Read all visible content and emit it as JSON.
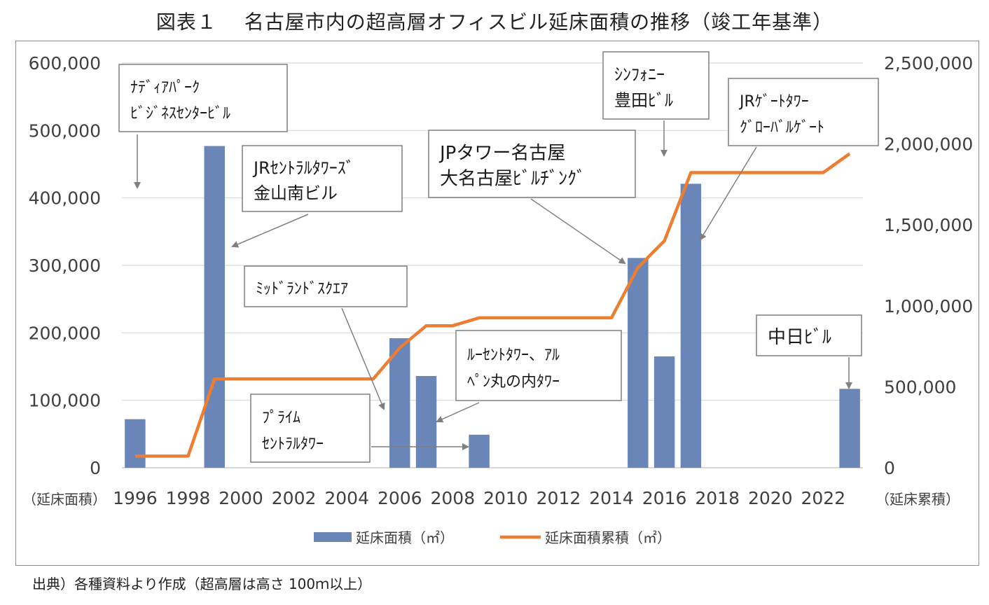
{
  "title": "図表１　 名古屋市内の超高層オフィスビル延床面積の推移（竣工年基準）",
  "source": "出典）各種資料より作成（超高層は高さ 100ｍ以上）",
  "colors": {
    "bar": "#6a86b8",
    "line": "#ed7d31",
    "grid": "#d9d9d9",
    "callout_border": "#7f7f7f",
    "arrow": "#7f7f7f"
  },
  "chart_data": {
    "type": "bar",
    "title": "図表１　 名古屋市内の超高層オフィスビル延床面積の推移（竣工年基準）",
    "x": [
      1996,
      1997,
      1998,
      1999,
      2000,
      2001,
      2002,
      2003,
      2004,
      2005,
      2006,
      2007,
      2008,
      2009,
      2010,
      2011,
      2012,
      2013,
      2014,
      2015,
      2016,
      2017,
      2018,
      2019,
      2020,
      2021,
      2022,
      2023
    ],
    "x_tick_labels": [
      "1996",
      "1998",
      "2000",
      "2002",
      "2004",
      "2006",
      "2008",
      "2010",
      "2012",
      "2014",
      "2016",
      "2018",
      "2020",
      "2022"
    ],
    "y_left_label": "（延床面積）",
    "y_right_label": "（延床累積）",
    "y_left_range": [
      0,
      600000
    ],
    "y_right_range": [
      0,
      2500000
    ],
    "y_left_ticks": [
      "0",
      "100,000",
      "200,000",
      "300,000",
      "400,000",
      "500,000",
      "600,000"
    ],
    "y_right_ticks": [
      "0",
      "500,000",
      "1,000,000",
      "1,500,000",
      "2,000,000",
      "2,500,000"
    ],
    "grid": true,
    "legend_position": "bottom",
    "series": [
      {
        "name": "延床面積（㎡）",
        "type": "bar",
        "axis": "left",
        "values": [
          72000,
          0,
          0,
          477000,
          0,
          0,
          0,
          0,
          0,
          0,
          192000,
          136000,
          0,
          49000,
          0,
          0,
          0,
          0,
          0,
          311000,
          165000,
          421000,
          0,
          0,
          0,
          0,
          0,
          117000
        ]
      },
      {
        "name": "延床面積累積（㎡）",
        "type": "line",
        "axis": "right",
        "values": [
          72000,
          72000,
          72000,
          549000,
          549000,
          549000,
          549000,
          549000,
          549000,
          549000,
          741000,
          877000,
          877000,
          926000,
          926000,
          926000,
          926000,
          926000,
          926000,
          1237000,
          1402000,
          1823000,
          1823000,
          1823000,
          1823000,
          1823000,
          1823000,
          1940000
        ]
      }
    ],
    "annotations": [
      {
        "year": 1996,
        "lines": [
          "ﾅﾃﾞｨｱﾊﾟｰｸ",
          "ﾋﾞｼﾞﾈｽｾﾝﾀｰﾋﾞﾙ"
        ]
      },
      {
        "year": 1999,
        "lines": [
          "JRｾﾝﾄﾗﾙﾀﾜｰｽﾞ",
          "金山南ビル"
        ]
      },
      {
        "year": 2006,
        "lines": [
          "ﾐｯﾄﾞﾗﾝﾄﾞｽｸｴｱ"
        ]
      },
      {
        "year": 2007,
        "lines": [
          "ﾙｰｾﾝﾄﾀﾜｰ、ｱﾙ",
          "ﾍﾟﾝ丸の内ﾀﾜｰ"
        ]
      },
      {
        "year": 2009,
        "lines": [
          "ﾌﾟﾗｲﾑ",
          "ｾﾝﾄﾗﾙﾀﾜｰ"
        ]
      },
      {
        "year": 2015,
        "lines": [
          "JPタワー名古屋",
          "大名古屋ﾋﾞﾙﾁﾞﾝｸﾞ"
        ]
      },
      {
        "year": 2016,
        "lines": [
          "ｼﾝﾌｫﾆｰ",
          "豊田ﾋﾞﾙ"
        ]
      },
      {
        "year": 2017,
        "lines": [
          "JRｹﾞｰﾄﾀﾜｰ",
          "ｸﾞﾛｰﾊﾞﾙｹﾞｰﾄ"
        ]
      },
      {
        "year": 2023,
        "lines": [
          "中日ﾋﾞﾙ"
        ]
      }
    ]
  }
}
